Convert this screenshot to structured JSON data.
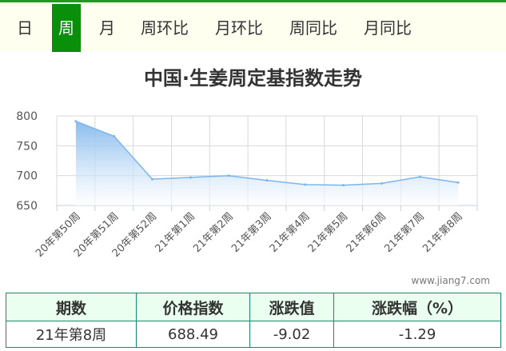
{
  "tabs": [
    {
      "label": "日",
      "active": false
    },
    {
      "label": "周",
      "active": true
    },
    {
      "label": "月",
      "active": false
    },
    {
      "label": "周环比",
      "active": false
    },
    {
      "label": "月环比",
      "active": false
    },
    {
      "label": "周同比",
      "active": false
    },
    {
      "label": "月同比",
      "active": false
    }
  ],
  "chart_data": {
    "type": "area",
    "title": "中国·生姜周定基指数走势",
    "categories": [
      "20年第50周",
      "20年第51周",
      "20年第52周",
      "21年第1周",
      "21年第2周",
      "21年第3周",
      "21年第4周",
      "21年第5周",
      "21年第6周",
      "21年第7周",
      "21年第8周"
    ],
    "series": [
      {
        "values": [
          791,
          766,
          694,
          697,
          700,
          692,
          685,
          684,
          687,
          698,
          688.49
        ]
      }
    ],
    "yticks": [
      650,
      700,
      750,
      800
    ],
    "ylim": [
      650,
      800
    ],
    "grid": true,
    "colors": {
      "line": "#7cb5ec",
      "fill_top": "#7cb5ec",
      "fill_bottom": "#ffffff"
    }
  },
  "watermark": "www.jiang7.com",
  "table": {
    "headers": [
      "期数",
      "价格指数",
      "涨跌值",
      "涨跌幅（%）"
    ],
    "rows": [
      [
        "21年第8周",
        "688.49",
        "-9.02",
        "-1.29"
      ]
    ]
  }
}
